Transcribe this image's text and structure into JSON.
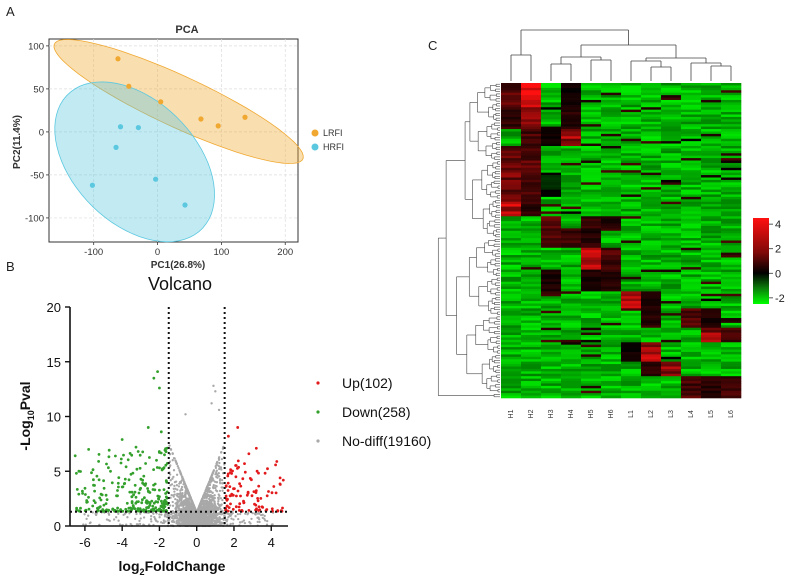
{
  "panel_labels": {
    "a": "A",
    "b": "B",
    "c": "C"
  },
  "colors": {
    "lrfi": "#f0a830",
    "hrfi": "#5bc8e0",
    "up": "#e31a1c",
    "down": "#33a02c",
    "nodiff": "#a8a8a8",
    "heat_high": "#ff1010",
    "heat_mid": "#000000",
    "heat_low": "#00ff00"
  },
  "chart_data": [
    {
      "id": "pca",
      "type": "scatter",
      "title": "PCA",
      "xlabel": "PC1(26.8%)",
      "ylabel": "PC2(11.4%)",
      "xlim": [
        -170,
        220
      ],
      "ylim": [
        -128,
        108
      ],
      "xticks": [
        -100,
        0,
        100,
        200
      ],
      "yticks": [
        100,
        50,
        0,
        -50,
        -100
      ],
      "grid": true,
      "legend_position": "right",
      "series": [
        {
          "name": "LRFI",
          "color": "#f0a830",
          "points": [
            [
              -62,
              85
            ],
            [
              -45,
              53
            ],
            [
              5,
              35
            ],
            [
              68,
              15
            ],
            [
              95,
              7
            ],
            [
              137,
              17
            ]
          ]
        },
        {
          "name": "HRFI",
          "color": "#5bc8e0",
          "points": [
            [
              -58,
              6
            ],
            [
              -30,
              5
            ],
            [
              -65,
              -18
            ],
            [
              -102,
              -62
            ],
            [
              -3,
              -55
            ],
            [
              43,
              -85
            ]
          ]
        }
      ]
    },
    {
      "id": "volcano",
      "type": "scatter",
      "title": "Volcano",
      "xlabel": "log2FoldChange",
      "ylabel": "-Log10Pval",
      "xlim": [
        -6.8,
        4.9
      ],
      "ylim": [
        0,
        20
      ],
      "xticks": [
        -6,
        -4,
        -2,
        0,
        2,
        4
      ],
      "yticks": [
        0,
        5,
        10,
        15,
        20
      ],
      "fc_threshold": [
        -1.5,
        1.5
      ],
      "pval_threshold": 1.3,
      "legend_position": "right",
      "legend": [
        {
          "label": "Up",
          "count": "(102)",
          "color": "#e31a1c"
        },
        {
          "label": "Down",
          "count": "(258)",
          "color": "#33a02c"
        },
        {
          "label": "No-diff",
          "count": "(19160)",
          "color": "#a8a8a8"
        }
      ]
    },
    {
      "id": "heatmap",
      "type": "heatmap",
      "columns": [
        "H1",
        "H2",
        "H3",
        "H4",
        "H5",
        "H6",
        "L1",
        "L2",
        "L3",
        "L4",
        "L5",
        "L6"
      ],
      "colorbar_ticks": [
        4,
        2,
        0,
        -2
      ],
      "colorbar_range": [
        -2.5,
        4.5
      ]
    }
  ]
}
